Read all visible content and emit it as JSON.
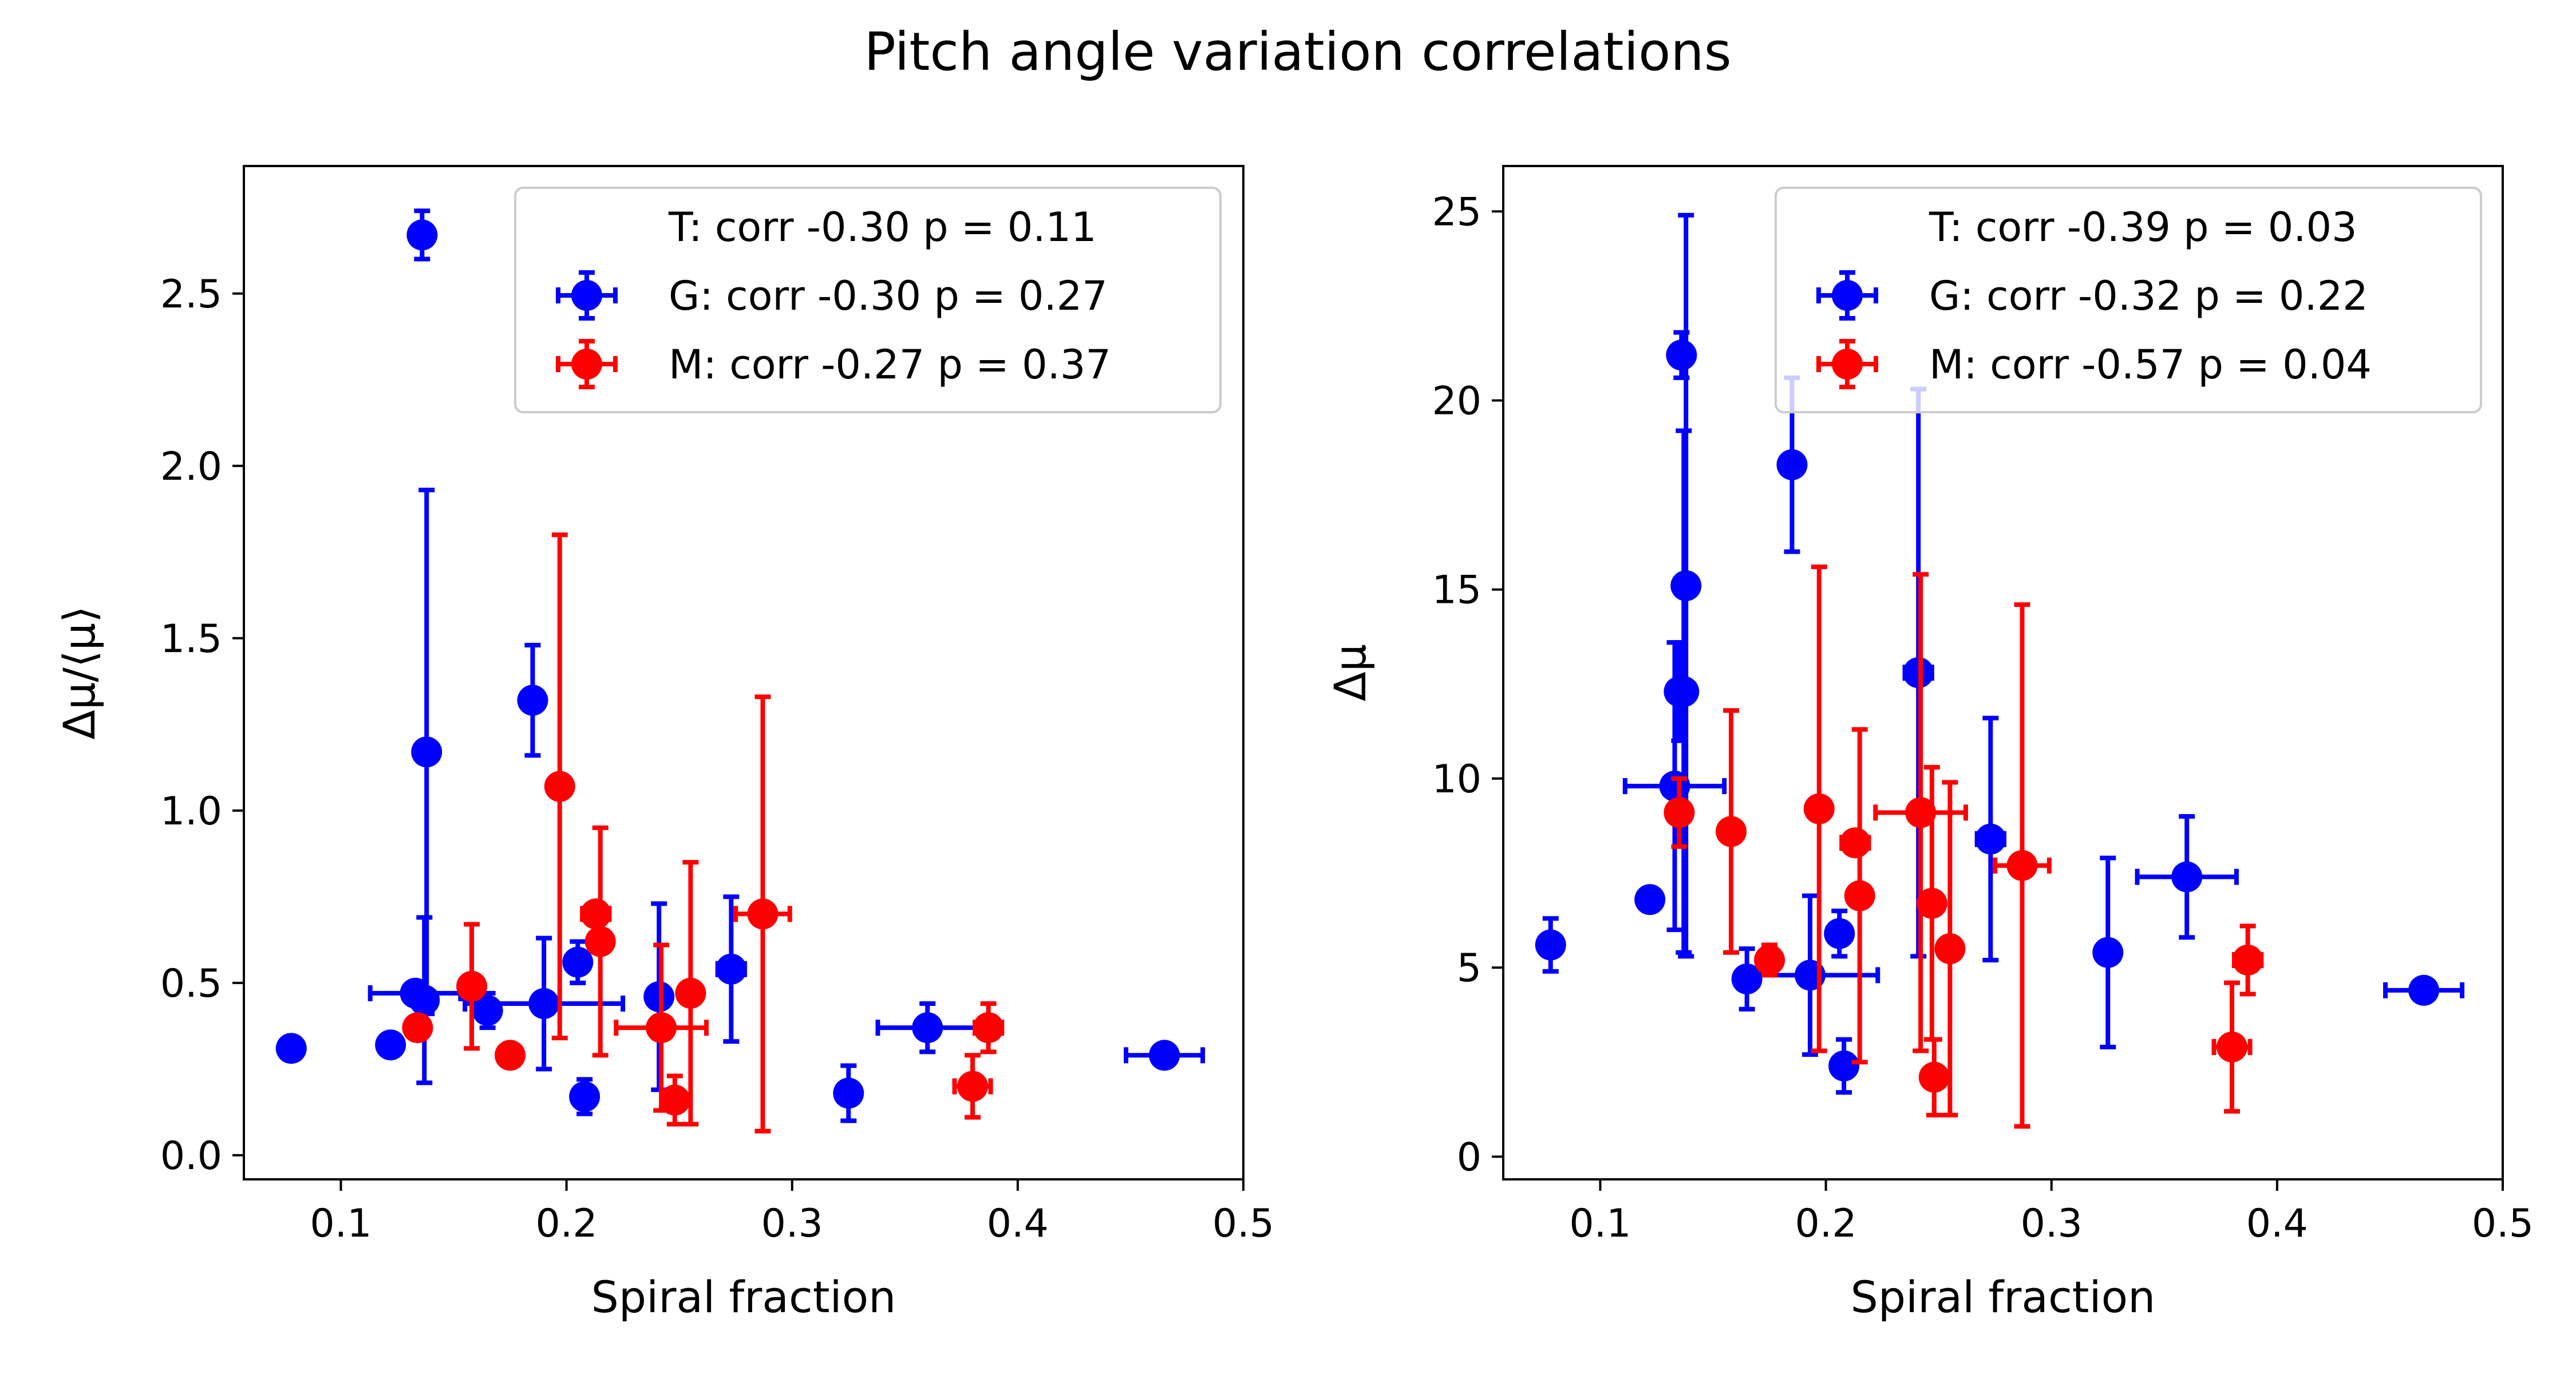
{
  "figure": {
    "suptitle": "Pitch angle variation correlations"
  },
  "colors": {
    "G": "#0000ff",
    "M": "#ff0000",
    "axes": "#000000"
  },
  "chart_data": [
    {
      "type": "scatter",
      "title": "",
      "xlabel": "Spiral fraction",
      "ylabel": "Δμ/⟨μ⟩",
      "xlim": [
        0.057,
        0.5
      ],
      "ylim": [
        -0.07,
        2.87
      ],
      "xticks": [
        0.1,
        0.2,
        0.3,
        0.4,
        0.5
      ],
      "xtick_labels": [
        "0.1",
        "0.2",
        "0.3",
        "0.4",
        "0.5"
      ],
      "yticks": [
        0.0,
        0.5,
        1.0,
        1.5,
        2.0,
        2.5
      ],
      "ytick_labels": [
        "0.0",
        "0.5",
        "1.0",
        "1.5",
        "2.0",
        "2.5"
      ],
      "legend_position": "top-right",
      "legend": [
        {
          "label": "T: corr -0.30 p = 0.11",
          "marker": "none"
        },
        {
          "label": "G: corr -0.30 p = 0.27",
          "marker": "circle-errorbar",
          "color": "#0000ff"
        },
        {
          "label": "M: corr -0.27 p = 0.37",
          "marker": "circle-errorbar",
          "color": "#ff0000"
        }
      ],
      "series": [
        {
          "name": "G: corr -0.30 p = 0.27",
          "color": "#0000ff",
          "points": [
            {
              "x": 0.078,
              "y": 0.31,
              "xerr": 0.002,
              "yerr": 0.03
            },
            {
              "x": 0.122,
              "y": 0.32,
              "xerr": 0.0,
              "yerr": 0.0
            },
            {
              "x": 0.133,
              "y": 0.47,
              "xerr": 0.02,
              "yerr": 0.0
            },
            {
              "x": 0.136,
              "y": 2.67,
              "xerr": 0.002,
              "yerr": 0.07
            },
            {
              "x": 0.137,
              "y": 0.45,
              "xerr": 0.0,
              "yerr": 0.24
            },
            {
              "x": 0.138,
              "y": 1.17,
              "xerr": 0.0,
              "yerr": 0.76
            },
            {
              "x": 0.165,
              "y": 0.42,
              "xerr": 0.005,
              "yerr": 0.05
            },
            {
              "x": 0.185,
              "y": 1.32,
              "xerr": 0.004,
              "yerr": 0.16
            },
            {
              "x": 0.19,
              "y": 0.44,
              "xerr": 0.035,
              "yerr": 0.19
            },
            {
              "x": 0.205,
              "y": 0.56,
              "xerr": 0.005,
              "yerr": 0.06
            },
            {
              "x": 0.208,
              "y": 0.17,
              "xerr": 0.003,
              "yerr": 0.05
            },
            {
              "x": 0.241,
              "y": 0.46,
              "xerr": 0.004,
              "yerr": 0.27
            },
            {
              "x": 0.273,
              "y": 0.54,
              "xerr": 0.006,
              "yerr": 0.21
            },
            {
              "x": 0.325,
              "y": 0.18,
              "xerr": 0.003,
              "yerr": 0.08
            },
            {
              "x": 0.36,
              "y": 0.37,
              "xerr": 0.022,
              "yerr": 0.07
            },
            {
              "x": 0.465,
              "y": 0.29,
              "xerr": 0.017,
              "yerr": 0.02
            }
          ]
        },
        {
          "name": "M: corr -0.27 p = 0.37",
          "color": "#ff0000",
          "points": [
            {
              "x": 0.134,
              "y": 0.37,
              "xerr": 0.0,
              "yerr": 0.0
            },
            {
              "x": 0.158,
              "y": 0.49,
              "xerr": 0.005,
              "yerr": 0.18
            },
            {
              "x": 0.175,
              "y": 0.29,
              "xerr": 0.0,
              "yerr": 0.0
            },
            {
              "x": 0.197,
              "y": 1.07,
              "xerr": 0.0,
              "yerr": 0.73
            },
            {
              "x": 0.213,
              "y": 0.7,
              "xerr": 0.006,
              "yerr": 0.0
            },
            {
              "x": 0.215,
              "y": 0.62,
              "xerr": 0.0,
              "yerr": 0.33
            },
            {
              "x": 0.242,
              "y": 0.37,
              "xerr": 0.02,
              "yerr": 0.24
            },
            {
              "x": 0.248,
              "y": 0.16,
              "xerr": 0.005,
              "yerr": 0.07
            },
            {
              "x": 0.255,
              "y": 0.47,
              "xerr": 0.0,
              "yerr": 0.38
            },
            {
              "x": 0.287,
              "y": 0.7,
              "xerr": 0.012,
              "yerr": 0.63
            },
            {
              "x": 0.38,
              "y": 0.2,
              "xerr": 0.008,
              "yerr": 0.09
            },
            {
              "x": 0.387,
              "y": 0.37,
              "xerr": 0.006,
              "yerr": 0.07
            }
          ]
        }
      ]
    },
    {
      "type": "scatter",
      "title": "",
      "xlabel": "Spiral fraction",
      "ylabel": "Δμ",
      "xlim": [
        0.057,
        0.5
      ],
      "ylim": [
        -0.6,
        26.2
      ],
      "xticks": [
        0.1,
        0.2,
        0.3,
        0.4,
        0.5
      ],
      "xtick_labels": [
        "0.1",
        "0.2",
        "0.3",
        "0.4",
        "0.5"
      ],
      "yticks": [
        0,
        5,
        10,
        15,
        20,
        25
      ],
      "ytick_labels": [
        "0",
        "5",
        "10",
        "15",
        "20",
        "25"
      ],
      "legend_position": "top-right",
      "legend": [
        {
          "label": "T: corr -0.39 p = 0.03",
          "marker": "none"
        },
        {
          "label": "G: corr -0.32 p = 0.22",
          "marker": "circle-errorbar",
          "color": "#0000ff"
        },
        {
          "label": "M: corr -0.57 p = 0.04",
          "marker": "circle-errorbar",
          "color": "#ff0000"
        }
      ],
      "series": [
        {
          "name": "G: corr -0.32 p = 0.22",
          "color": "#0000ff",
          "points": [
            {
              "x": 0.078,
              "y": 5.6,
              "xerr": 0.002,
              "yerr": 0.7
            },
            {
              "x": 0.122,
              "y": 6.8,
              "xerr": 0.002,
              "yerr": 0.3
            },
            {
              "x": 0.133,
              "y": 9.8,
              "xerr": 0.022,
              "yerr": 3.8
            },
            {
              "x": 0.135,
              "y": 12.3,
              "xerr": 0.002,
              "yerr": 1.3
            },
            {
              "x": 0.136,
              "y": 21.2,
              "xerr": 0.002,
              "yerr": 0.6
            },
            {
              "x": 0.137,
              "y": 12.3,
              "xerr": 0.0,
              "yerr": 6.9
            },
            {
              "x": 0.138,
              "y": 15.1,
              "xerr": 0.0,
              "yerr": 9.8
            },
            {
              "x": 0.165,
              "y": 4.7,
              "xerr": 0.005,
              "yerr": 0.8
            },
            {
              "x": 0.185,
              "y": 18.3,
              "xerr": 0.004,
              "yerr": 2.3
            },
            {
              "x": 0.193,
              "y": 4.8,
              "xerr": 0.03,
              "yerr": 2.1
            },
            {
              "x": 0.206,
              "y": 5.9,
              "xerr": 0.005,
              "yerr": 0.6
            },
            {
              "x": 0.208,
              "y": 2.4,
              "xerr": 0.003,
              "yerr": 0.7
            },
            {
              "x": 0.241,
              "y": 12.8,
              "xerr": 0.006,
              "yerr": 7.5
            },
            {
              "x": 0.273,
              "y": 8.4,
              "xerr": 0.006,
              "yerr": 3.2
            },
            {
              "x": 0.325,
              "y": 5.4,
              "xerr": 0.003,
              "yerr": 2.5
            },
            {
              "x": 0.36,
              "y": 7.4,
              "xerr": 0.022,
              "yerr": 1.6
            },
            {
              "x": 0.465,
              "y": 4.4,
              "xerr": 0.017,
              "yerr": 0.2
            }
          ]
        },
        {
          "name": "M: corr -0.57 p = 0.04",
          "color": "#ff0000",
          "points": [
            {
              "x": 0.135,
              "y": 9.1,
              "xerr": 0.0,
              "yerr": 0.9
            },
            {
              "x": 0.158,
              "y": 8.6,
              "xerr": 0.005,
              "yerr": 3.2
            },
            {
              "x": 0.175,
              "y": 5.2,
              "xerr": 0.004,
              "yerr": 0.4
            },
            {
              "x": 0.197,
              "y": 9.2,
              "xerr": 0.003,
              "yerr": 6.4
            },
            {
              "x": 0.213,
              "y": 8.3,
              "xerr": 0.006,
              "yerr": 0.0
            },
            {
              "x": 0.215,
              "y": 6.9,
              "xerr": 0.0,
              "yerr": 4.4
            },
            {
              "x": 0.242,
              "y": 9.1,
              "xerr": 0.02,
              "yerr": 6.3
            },
            {
              "x": 0.247,
              "y": 6.7,
              "xerr": 0.004,
              "yerr": 3.6
            },
            {
              "x": 0.248,
              "y": 2.1,
              "xerr": 0.005,
              "yerr": 1.0
            },
            {
              "x": 0.255,
              "y": 5.5,
              "xerr": 0.0,
              "yerr": 4.4
            },
            {
              "x": 0.287,
              "y": 7.7,
              "xerr": 0.012,
              "yerr": 6.9
            },
            {
              "x": 0.38,
              "y": 2.9,
              "xerr": 0.008,
              "yerr": 1.7
            },
            {
              "x": 0.387,
              "y": 5.2,
              "xerr": 0.006,
              "yerr": 0.9
            }
          ]
        }
      ]
    }
  ]
}
